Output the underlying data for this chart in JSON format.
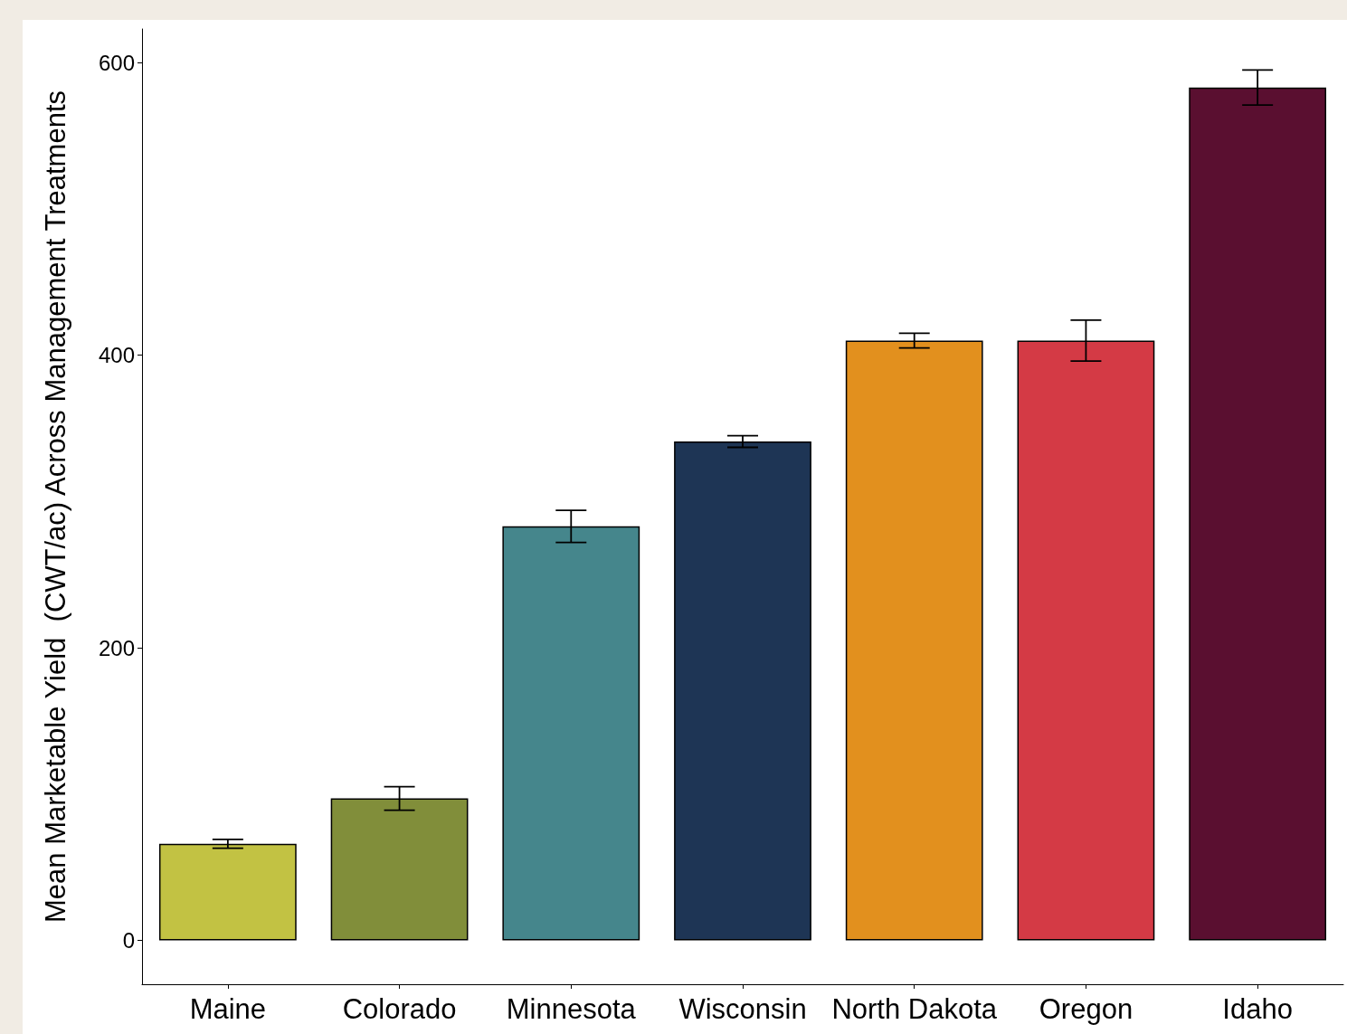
{
  "chart_data": {
    "type": "bar",
    "ylabel": "Mean Marketable Yield  (CWT/ac) Across Management Treatments",
    "categories": [
      "Maine",
      "Colorado",
      "Minnesota",
      "Wisconsin",
      "North Dakota",
      "Oregon",
      "Idaho"
    ],
    "values": [
      66,
      97,
      283,
      341,
      410,
      410,
      583
    ],
    "colors": [
      "#c2c243",
      "#818e3a",
      "#45868c",
      "#1e3555",
      "#e2901e",
      "#d43a45",
      "#5a0f30"
    ],
    "errors": [
      3,
      8,
      11,
      4,
      5,
      14,
      12
    ],
    "ylim": [
      -30,
      623
    ],
    "yticks": [
      0,
      200,
      400,
      600
    ],
    "grid": false
  }
}
